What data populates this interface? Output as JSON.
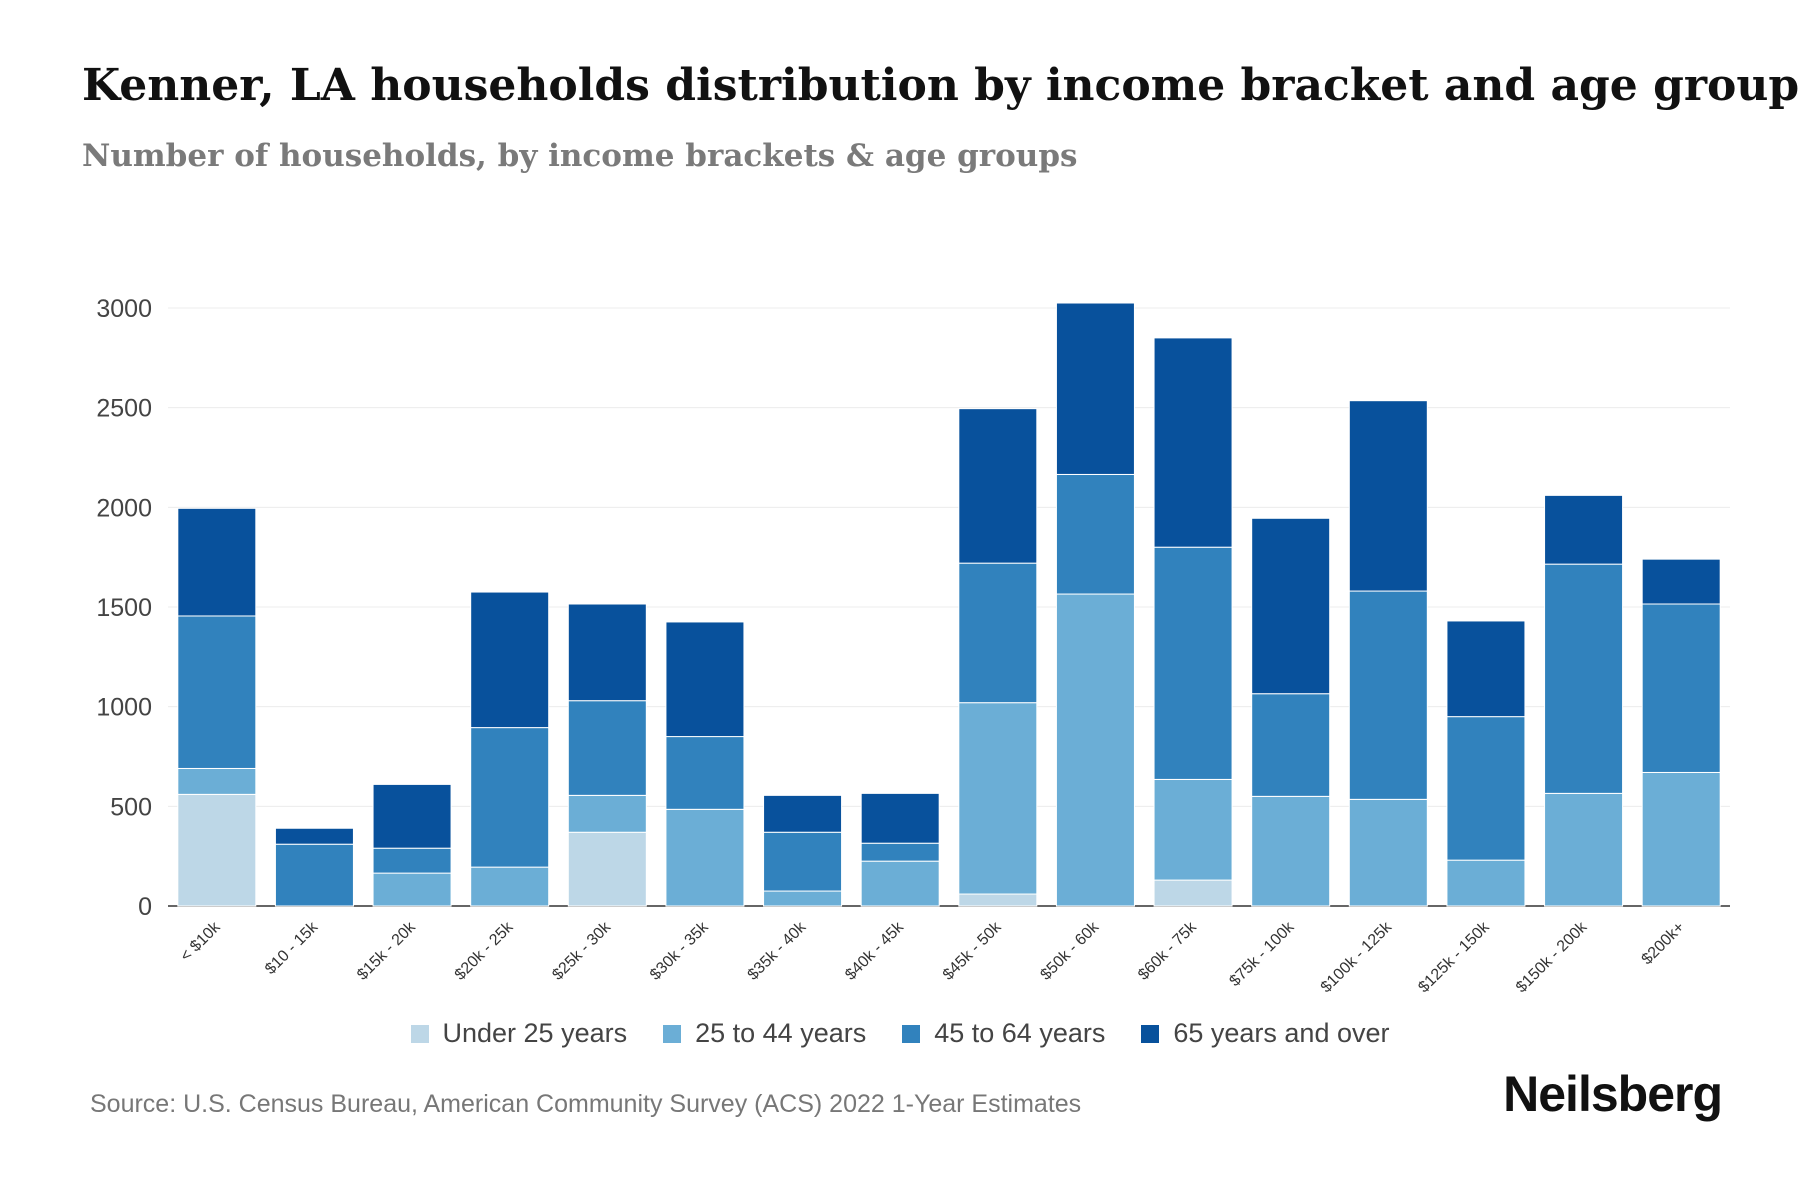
{
  "title": "Kenner, LA households distribution by income bracket and age group",
  "subtitle": "Number of households, by income brackets & age groups",
  "source": "Source: U.S. Census Bureau, American Community Survey (ACS) 2022 1-Year Estimates",
  "brand": "Neilsberg",
  "chart_data": {
    "type": "bar",
    "stacked": true,
    "title": "Kenner, LA households distribution by income bracket and age group",
    "xlabel": "",
    "ylabel": "",
    "ylim": [
      0,
      3000
    ],
    "yticks": [
      0,
      500,
      1000,
      1500,
      2000,
      2500,
      3000
    ],
    "grid": true,
    "legend_position": "bottom",
    "categories": [
      "< $10k",
      "$10 - 15k",
      "$15k - 20k",
      "$20k - 25k",
      "$25k - 30k",
      "$30k - 35k",
      "$35k - 40k",
      "$40k - 45k",
      "$45k - 50k",
      "$50k - 60k",
      "$60k - 75k",
      "$75k - 100k",
      "$100k - 125k",
      "$125k - 150k",
      "$150k - 200k",
      "$200k+"
    ],
    "series": [
      {
        "name": "Under 25 years",
        "color": "#bdd7e7",
        "values": [
          560,
          0,
          0,
          0,
          370,
          0,
          0,
          0,
          60,
          0,
          130,
          0,
          0,
          0,
          0,
          0
        ]
      },
      {
        "name": "25 to 44 years",
        "color": "#6baed6",
        "values": [
          130,
          0,
          165,
          195,
          185,
          485,
          75,
          225,
          960,
          1565,
          505,
          550,
          535,
          230,
          565,
          670
        ]
      },
      {
        "name": "45 to 64 years",
        "color": "#3182bd",
        "values": [
          765,
          310,
          125,
          700,
          475,
          365,
          295,
          90,
          700,
          600,
          1165,
          515,
          1045,
          720,
          1150,
          845
        ]
      },
      {
        "name": "65 years and over",
        "color": "#08519c",
        "values": [
          540,
          80,
          320,
          680,
          485,
          575,
          185,
          250,
          775,
          860,
          1050,
          880,
          955,
          480,
          345,
          225
        ]
      }
    ]
  }
}
